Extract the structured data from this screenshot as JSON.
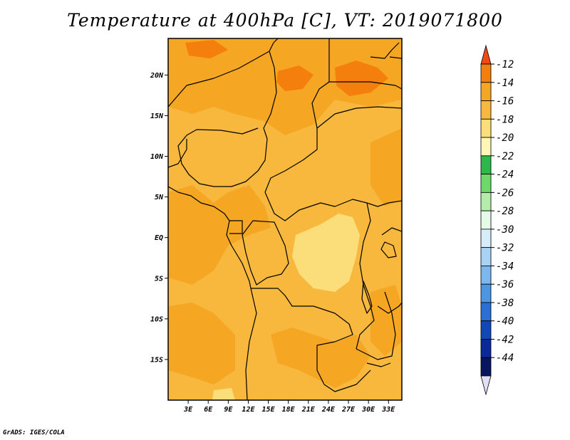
{
  "title": "Temperature at 400hPa [C], VT: 2019071800",
  "credit": "GrADS: IGES/COLA",
  "map": {
    "lon_range": [
      0,
      35
    ],
    "lat_range": [
      -20,
      24.5
    ],
    "lat_ticks": [
      {
        "lat": 20,
        "label": "20N"
      },
      {
        "lat": 15,
        "label": "15N"
      },
      {
        "lat": 10,
        "label": "10N"
      },
      {
        "lat": 5,
        "label": "5N"
      },
      {
        "lat": 0,
        "label": "EQ"
      },
      {
        "lat": -5,
        "label": "5S"
      },
      {
        "lat": -10,
        "label": "10S"
      },
      {
        "lat": -15,
        "label": "15S"
      }
    ],
    "lon_ticks": [
      {
        "lon": 3,
        "label": "3E"
      },
      {
        "lon": 6,
        "label": "6E"
      },
      {
        "lon": 9,
        "label": "9E"
      },
      {
        "lon": 12,
        "label": "12E"
      },
      {
        "lon": 15,
        "label": "15E"
      },
      {
        "lon": 18,
        "label": "18E"
      },
      {
        "lon": 21,
        "label": "21E"
      },
      {
        "lon": 24,
        "label": "24E"
      },
      {
        "lon": 27,
        "label": "27E"
      },
      {
        "lon": 30,
        "label": "30E"
      },
      {
        "lon": 33,
        "label": "33E"
      }
    ]
  },
  "colorbar": {
    "labels": [
      "-12",
      "-14",
      "-16",
      "-18",
      "-20",
      "-22",
      "-24",
      "-26",
      "-28",
      "-30",
      "-32",
      "-34",
      "-36",
      "-38",
      "-40",
      "-42",
      "-44"
    ],
    "colors": [
      "#f04a14",
      "#f47f0c",
      "#f5a623",
      "#f7b83d",
      "#fbde7a",
      "#fff6b8",
      "#2cb84a",
      "#6fd86a",
      "#b4edaa",
      "#e6fae8",
      "#d6ecfa",
      "#a9d3f5",
      "#7cb8ee",
      "#4d96e4",
      "#2a6ed6",
      "#1048b8",
      "#0a2a9a",
      "#081660",
      "#e0e0f4"
    ]
  }
}
